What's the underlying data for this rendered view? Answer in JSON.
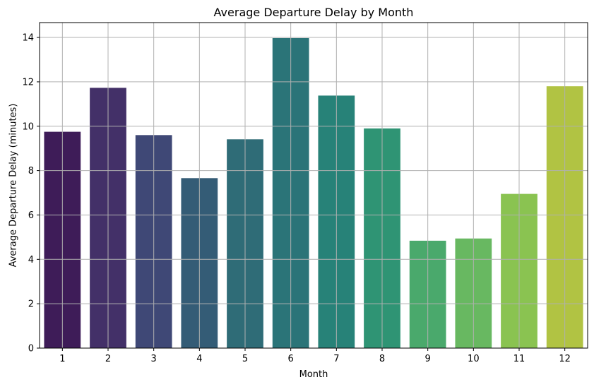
{
  "chart_data": {
    "type": "bar",
    "title": "Average Departure Delay by Month",
    "xlabel": "Month",
    "ylabel": "Average Departure Delay (minutes)",
    "categories": [
      "1",
      "2",
      "3",
      "4",
      "5",
      "6",
      "7",
      "8",
      "9",
      "10",
      "11",
      "12"
    ],
    "values": [
      9.75,
      11.73,
      9.6,
      7.66,
      9.41,
      13.97,
      11.38,
      9.9,
      4.84,
      4.94,
      6.95,
      11.8
    ],
    "ylim": [
      0,
      14.67
    ],
    "yticks": [
      0,
      2,
      4,
      6,
      8,
      10,
      12,
      14
    ],
    "grid": true,
    "colors": [
      "#3e1c58",
      "#433068",
      "#3f4876",
      "#345c76",
      "#2f6c77",
      "#2b7478",
      "#278278",
      "#2f9474",
      "#4aa96c",
      "#68b861",
      "#8ac351",
      "#b1c343"
    ]
  }
}
